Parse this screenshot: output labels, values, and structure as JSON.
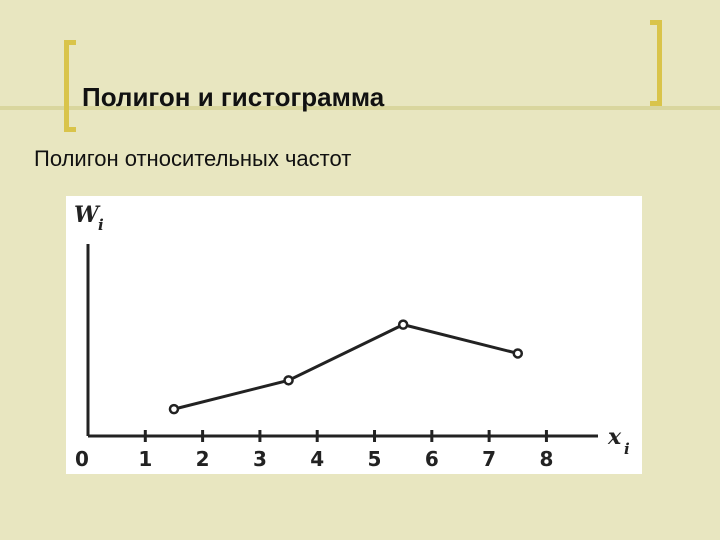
{
  "slide": {
    "title": "Полигон и гистограмма",
    "subtitle": "Полигон относительных частот"
  },
  "chart_data": {
    "type": "line",
    "title": "",
    "ylabel": "W",
    "ylabel_sub": "i",
    "xlabel": "x",
    "xlabel_sub": "i",
    "xlim": [
      0,
      8.9
    ],
    "ylim": [
      0,
      1
    ],
    "ticks": [
      "0",
      "1",
      "2",
      "3",
      "4",
      "5",
      "6",
      "7",
      "8"
    ],
    "x": [
      1.5,
      3.5,
      5.5,
      7.5
    ],
    "y": [
      0.14,
      0.29,
      0.58,
      0.43
    ],
    "grid": false
  }
}
